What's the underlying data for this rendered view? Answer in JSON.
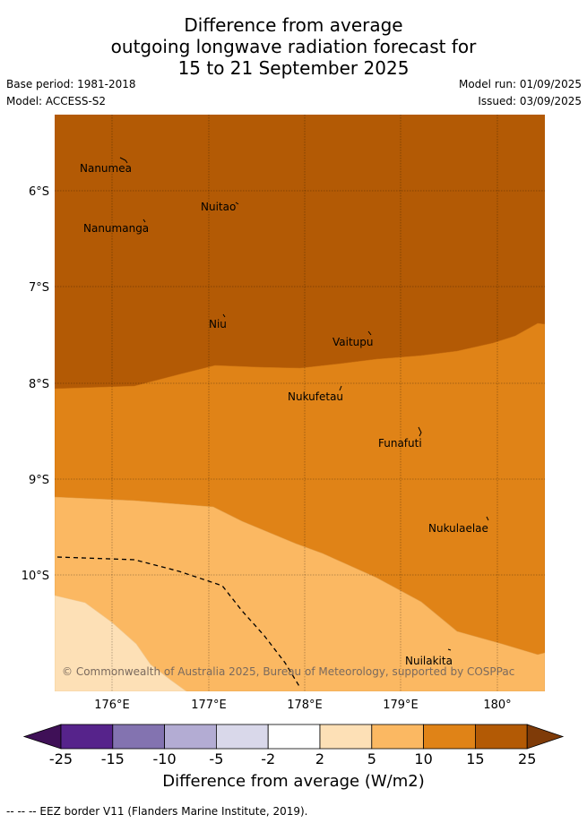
{
  "title": {
    "line1": "Difference from average",
    "line2": "outgoing longwave radiation forecast for",
    "line3": "15 to 21 September 2025"
  },
  "meta": {
    "base_period": "Base period: 1981-2018",
    "model": "Model: ACCESS-S2",
    "model_run": "Model run: 01/09/2025",
    "issued": "Issued: 03/09/2025"
  },
  "map": {
    "x_ticks": [
      "176°E",
      "177°E",
      "178°E",
      "179°E",
      "180°"
    ],
    "y_ticks": [
      "6°S",
      "7°S",
      "8°S",
      "9°S",
      "10°S"
    ],
    "places": [
      "Nanumea",
      "Nuitao",
      "Nanumanga",
      "Niu",
      "Vaitupu",
      "Nukufetau",
      "Funafuti",
      "Nukulaelae",
      "Nuilakita"
    ],
    "copyright": "© Commonwealth of Australia 2025, Bureau of Meteorology, supported by COSPPac"
  },
  "colorbar": {
    "ticks": [
      "-25",
      "-15",
      "-10",
      "-5",
      "-2",
      "2",
      "5",
      "10",
      "15",
      "25"
    ],
    "colors": [
      "#3f1057",
      "#56238b",
      "#8373b0",
      "#b3acd3",
      "#d9d8ea",
      "#ffffff",
      "#fde0b6",
      "#fbb862",
      "#e08317",
      "#b35a05",
      "#7f3b08"
    ],
    "title": "Difference from average (W/m2)"
  },
  "footnote": "-- -- -- EEZ border V11 (Flanders Marine Institute, 2019)."
}
